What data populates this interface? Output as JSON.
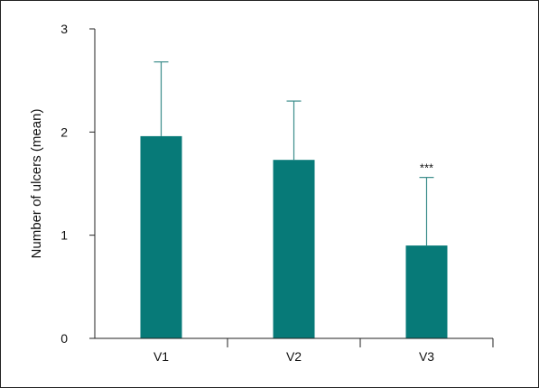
{
  "chart_data": {
    "type": "bar",
    "title": "",
    "xlabel": "",
    "ylabel": "Number of ulcers (mean)",
    "categories": [
      "V1",
      "V2",
      "V3"
    ],
    "values": [
      1.96,
      1.73,
      0.9
    ],
    "error_plus": [
      0.72,
      0.57,
      0.66
    ],
    "annotations": [
      "",
      "",
      "***"
    ],
    "ylim": [
      0,
      3
    ],
    "yticks": [
      "0",
      "1",
      "2",
      "3"
    ],
    "grid": false,
    "legend": "none",
    "bar_color": "#077A78",
    "error_color": "#3A8C8A",
    "axis_color": "#222222"
  }
}
